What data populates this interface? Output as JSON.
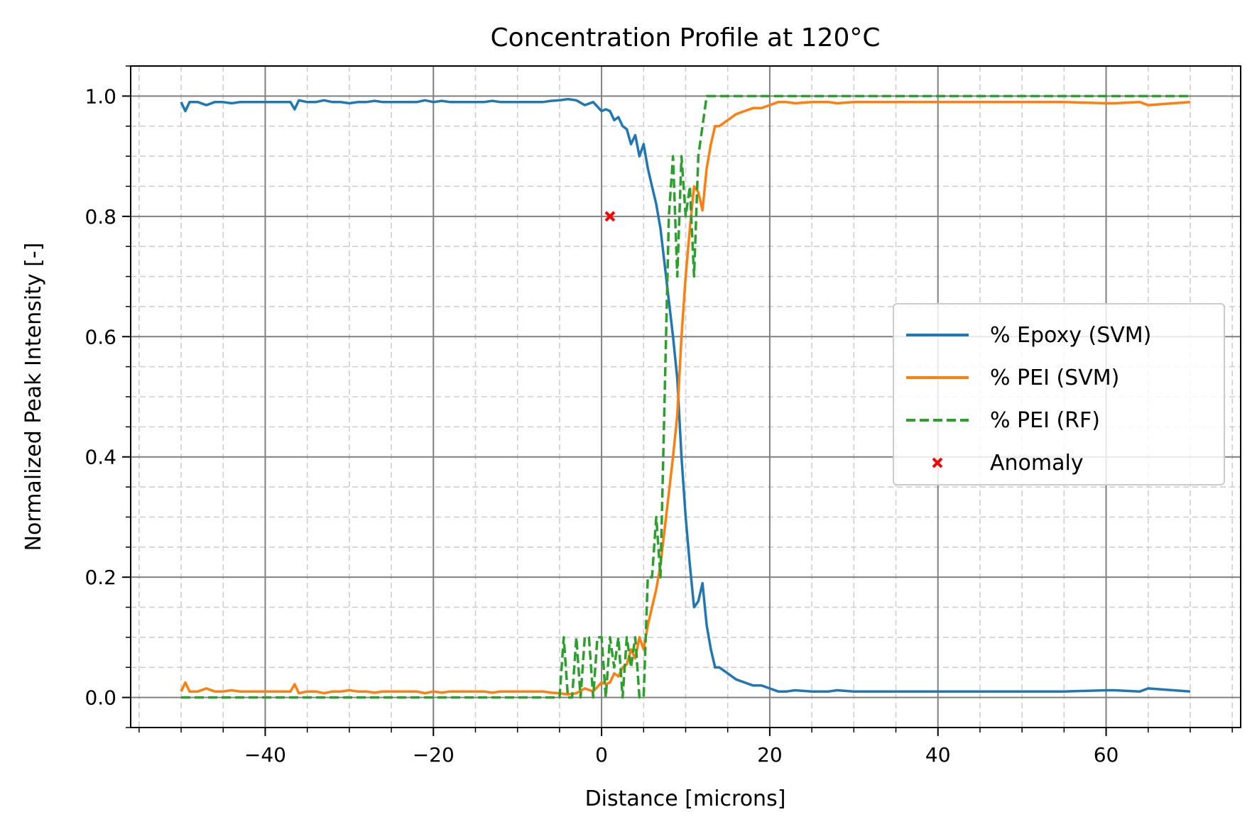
{
  "chart_data": {
    "type": "line",
    "title": "Concentration Profile at 120°C",
    "xlabel": "Distance [microns]",
    "ylabel": "Normalized Peak Intensity [-]",
    "xlim": [
      -56,
      76
    ],
    "ylim": [
      -0.05,
      1.05
    ],
    "x_ticks": [
      -40,
      -20,
      0,
      20,
      40,
      60
    ],
    "x_tick_labels": [
      "−40",
      "−20",
      "0",
      "20",
      "40",
      "60"
    ],
    "y_ticks": [
      0.0,
      0.2,
      0.4,
      0.6,
      0.8,
      1.0
    ],
    "y_tick_labels": [
      "0.0",
      "0.2",
      "0.4",
      "0.6",
      "0.8",
      "1.0"
    ],
    "grid": true,
    "minor_grid": true,
    "legend_position": "center-right",
    "series": [
      {
        "name": "% Epoxy (SVM)",
        "type": "line",
        "style": "solid",
        "color": "#1f77b4",
        "x": [
          -50,
          -49.5,
          -49,
          -48,
          -47,
          -46,
          -45,
          -44,
          -43,
          -42,
          -41,
          -40,
          -39,
          -38,
          -37,
          -36.5,
          -36,
          -35,
          -34,
          -33,
          -32,
          -31,
          -30,
          -29,
          -28,
          -27,
          -26,
          -25,
          -24,
          -23,
          -22,
          -21,
          -20,
          -19,
          -18,
          -17,
          -16,
          -15,
          -14,
          -13,
          -12,
          -11,
          -10,
          -9,
          -8,
          -7,
          -6,
          -5,
          -4,
          -3,
          -2,
          -1,
          0,
          0.5,
          1,
          1.5,
          2,
          2.5,
          3,
          3.5,
          4,
          4.5,
          5,
          5.5,
          6,
          6.5,
          7,
          7.5,
          8,
          8.5,
          9,
          9.5,
          10,
          10.5,
          11,
          11.5,
          12,
          12.5,
          13,
          13.5,
          14,
          15,
          16,
          17,
          18,
          19,
          20,
          21,
          22,
          23,
          25,
          27,
          28,
          30,
          35,
          40,
          45,
          50,
          55,
          60,
          61,
          64,
          65,
          70
        ],
        "y": [
          0.99,
          0.975,
          0.99,
          0.99,
          0.985,
          0.99,
          0.99,
          0.988,
          0.99,
          0.99,
          0.99,
          0.99,
          0.99,
          0.99,
          0.99,
          0.978,
          0.993,
          0.99,
          0.99,
          0.993,
          0.99,
          0.99,
          0.988,
          0.99,
          0.99,
          0.992,
          0.99,
          0.99,
          0.99,
          0.99,
          0.99,
          0.993,
          0.99,
          0.992,
          0.99,
          0.99,
          0.99,
          0.99,
          0.99,
          0.992,
          0.99,
          0.99,
          0.99,
          0.99,
          0.99,
          0.99,
          0.992,
          0.993,
          0.995,
          0.993,
          0.985,
          0.99,
          0.975,
          0.978,
          0.975,
          0.96,
          0.965,
          0.95,
          0.945,
          0.92,
          0.935,
          0.9,
          0.92,
          0.88,
          0.85,
          0.82,
          0.78,
          0.72,
          0.66,
          0.6,
          0.53,
          0.4,
          0.3,
          0.22,
          0.15,
          0.16,
          0.19,
          0.12,
          0.08,
          0.05,
          0.05,
          0.04,
          0.03,
          0.025,
          0.02,
          0.02,
          0.015,
          0.01,
          0.01,
          0.012,
          0.01,
          0.01,
          0.012,
          0.01,
          0.01,
          0.01,
          0.01,
          0.01,
          0.01,
          0.012,
          0.012,
          0.01,
          0.015,
          0.01
        ]
      },
      {
        "name": "% PEI (SVM)",
        "type": "line",
        "style": "solid",
        "color": "#ff7f0e",
        "x": [
          -50,
          -49.5,
          -49,
          -48,
          -47,
          -46,
          -45,
          -44,
          -43,
          -42,
          -41,
          -40,
          -39,
          -38,
          -37,
          -36.5,
          -36,
          -35,
          -34,
          -33,
          -32,
          -31,
          -30,
          -29,
          -28,
          -27,
          -26,
          -25,
          -24,
          -23,
          -22,
          -21,
          -20,
          -19,
          -18,
          -17,
          -16,
          -15,
          -14,
          -13,
          -12,
          -11,
          -10,
          -9,
          -8,
          -7,
          -6,
          -5,
          -4,
          -3,
          -2,
          -1,
          0,
          0.5,
          1,
          1.5,
          2,
          2.5,
          3,
          3.5,
          4,
          4.5,
          5,
          5.5,
          6,
          6.5,
          7,
          7.5,
          8,
          8.5,
          9,
          9.5,
          10,
          10.5,
          11,
          11.5,
          12,
          12.5,
          13,
          13.5,
          14,
          15,
          16,
          17,
          18,
          19,
          20,
          21,
          22,
          23,
          25,
          27,
          28,
          30,
          35,
          40,
          45,
          50,
          55,
          60,
          61,
          64,
          65,
          70
        ],
        "y": [
          0.01,
          0.025,
          0.01,
          0.01,
          0.015,
          0.01,
          0.01,
          0.012,
          0.01,
          0.01,
          0.01,
          0.01,
          0.01,
          0.01,
          0.01,
          0.022,
          0.007,
          0.01,
          0.01,
          0.007,
          0.01,
          0.01,
          0.012,
          0.01,
          0.01,
          0.008,
          0.01,
          0.01,
          0.01,
          0.01,
          0.01,
          0.007,
          0.01,
          0.008,
          0.01,
          0.01,
          0.01,
          0.01,
          0.01,
          0.008,
          0.01,
          0.01,
          0.01,
          0.01,
          0.01,
          0.01,
          0.008,
          0.007,
          0.005,
          0.007,
          0.015,
          0.01,
          0.025,
          0.022,
          0.025,
          0.04,
          0.035,
          0.05,
          0.055,
          0.08,
          0.065,
          0.1,
          0.08,
          0.12,
          0.15,
          0.18,
          0.22,
          0.28,
          0.34,
          0.4,
          0.47,
          0.6,
          0.7,
          0.78,
          0.85,
          0.84,
          0.81,
          0.88,
          0.92,
          0.95,
          0.95,
          0.96,
          0.97,
          0.975,
          0.98,
          0.98,
          0.985,
          0.99,
          0.99,
          0.988,
          0.99,
          0.99,
          0.988,
          0.99,
          0.99,
          0.99,
          0.99,
          0.99,
          0.99,
          0.988,
          0.988,
          0.99,
          0.985,
          0.99
        ]
      },
      {
        "name": "% PEI (RF)",
        "type": "line",
        "style": "dashed",
        "color": "#2ca02c",
        "x": [
          -50,
          -5,
          -4.5,
          -4,
          -3.5,
          -3,
          -2.5,
          -2,
          -1.5,
          -1,
          -0.5,
          0,
          0.5,
          1,
          1.5,
          2,
          2.5,
          3,
          3.5,
          4,
          4.5,
          5,
          5.5,
          6,
          6.5,
          7,
          7.5,
          8,
          8.5,
          9,
          9.5,
          10,
          10.5,
          11,
          11.5,
          12,
          12.5,
          13,
          13.5,
          14,
          70
        ],
        "y": [
          0,
          0,
          0.1,
          0,
          0,
          0.1,
          0,
          0.1,
          0.1,
          0,
          0.1,
          0.1,
          0,
          0.1,
          0.05,
          0.1,
          0,
          0.1,
          0.05,
          0.1,
          0,
          0,
          0.2,
          0.2,
          0.3,
          0.2,
          0.5,
          0.8,
          0.9,
          0.7,
          0.9,
          0.8,
          0.85,
          0.7,
          0.9,
          0.95,
          1.0,
          1.0,
          1.0,
          1.0,
          1.0
        ]
      },
      {
        "name": "Anomaly",
        "type": "scatter",
        "marker": "x",
        "color": "#ff0000",
        "x": [
          1
        ],
        "y": [
          0.8
        ]
      }
    ]
  }
}
